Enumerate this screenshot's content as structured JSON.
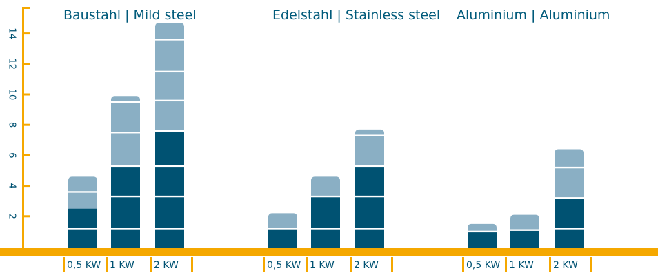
{
  "colors": {
    "axis": "#F5A800",
    "dark": "#005272",
    "light": "#8AAFC4",
    "divider": "#FFFFFF",
    "title": "#005A7A",
    "text": "#005272"
  },
  "chart_data": {
    "type": "bar",
    "stacked": true,
    "ylim": [
      0,
      15
    ],
    "yticks": [
      2,
      4,
      6,
      8,
      10,
      12,
      14
    ],
    "ytick_labels": [
      "2",
      "4",
      "6",
      "8",
      "10",
      "12",
      "14"
    ],
    "grid": false,
    "groups": [
      {
        "title": "Baustahl | Mild steel",
        "bars": [
          {
            "category": "0,5 KW",
            "dark": 2.5,
            "light": 2.1,
            "dividers": [
              1.2,
              3.6
            ]
          },
          {
            "category": "1 KW",
            "dark": 5.3,
            "light": 4.6,
            "dividers": [
              1.2,
              3.3,
              5.3,
              7.5,
              9.5
            ]
          },
          {
            "category": "2 KW",
            "dark": 7.6,
            "light": 7.1,
            "dividers": [
              1.2,
              3.3,
              5.3,
              7.6,
              9.6,
              11.5,
              13.6
            ]
          }
        ]
      },
      {
        "title": "Edelstahl | Stainless steel",
        "bars": [
          {
            "category": "0,5 KW",
            "dark": 1.2,
            "light": 1.0,
            "dividers": [
              1.2
            ]
          },
          {
            "category": "1 KW",
            "dark": 3.3,
            "light": 1.3,
            "dividers": [
              1.2,
              3.3
            ]
          },
          {
            "category": "2 KW",
            "dark": 5.3,
            "light": 2.4,
            "dividers": [
              1.2,
              3.3,
              5.3,
              7.3
            ]
          }
        ]
      },
      {
        "title": "Aluminium | Aluminium",
        "bars": [
          {
            "category": "0,5 KW",
            "dark": 1.0,
            "light": 0.5,
            "dividers": [
              1.0
            ]
          },
          {
            "category": "1 KW",
            "dark": 1.1,
            "light": 1.0,
            "dividers": [
              1.1
            ]
          },
          {
            "category": "2 KW",
            "dark": 3.2,
            "light": 3.2,
            "dividers": [
              1.2,
              3.2,
              5.2
            ]
          }
        ]
      }
    ]
  }
}
